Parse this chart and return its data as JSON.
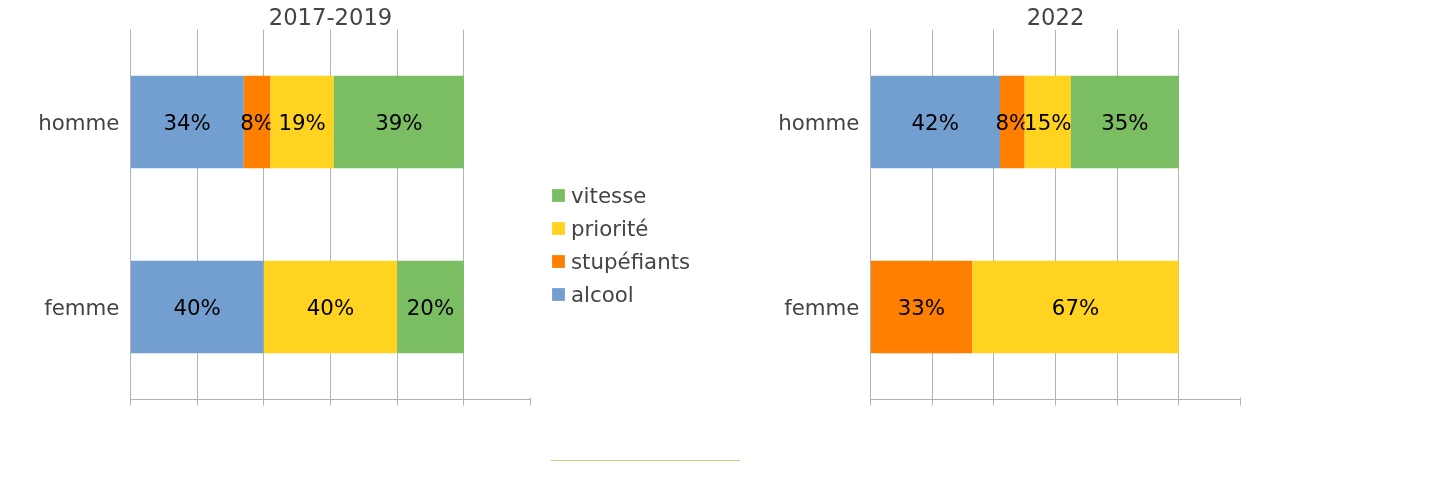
{
  "chart_data": [
    {
      "type": "bar",
      "orientation": "horizontal",
      "stacked": true,
      "title": "2017-2019",
      "categories": [
        "homme",
        "femme"
      ],
      "xlim": [
        0,
        120
      ],
      "xticks": [
        {
          "value": 0,
          "label": null
        },
        {
          "value": 20,
          "label": null
        },
        {
          "value": 40,
          "label": null
        },
        {
          "value": 60,
          "label": null
        },
        {
          "value": 80,
          "label": null
        },
        {
          "value": 100,
          "label": null
        },
        {
          "value": 120,
          "label": null
        }
      ],
      "tick_labels": "y",
      "grid": "x",
      "legend": "right",
      "series": [
        {
          "name": "alcool",
          "color": "#729fcf",
          "values": [
            34,
            40
          ],
          "value_labels": [
            "34%",
            "40%"
          ]
        },
        {
          "name": "stupéfiants",
          "color": "#ff8000",
          "values": [
            8,
            null
          ],
          "value_labels": [
            "8%",
            null
          ]
        },
        {
          "name": "priorité",
          "color": "#ffd320",
          "values": [
            19,
            40
          ],
          "value_labels": [
            "19%",
            "40%"
          ]
        },
        {
          "name": "vitesse",
          "color": "#7bbd63",
          "values": [
            39,
            20
          ],
          "value_labels": [
            "39%",
            "20%"
          ]
        }
      ]
    },
    {
      "type": "bar",
      "orientation": "horizontal",
      "stacked": true,
      "title": "2022",
      "categories": [
        "homme",
        "femme"
      ],
      "xlim": [
        0,
        120
      ],
      "xticks": [
        {
          "value": 0,
          "label": null
        },
        {
          "value": 20,
          "label": null
        },
        {
          "value": 40,
          "label": null
        },
        {
          "value": 60,
          "label": null
        },
        {
          "value": 80,
          "label": null
        },
        {
          "value": 100,
          "label": null
        },
        {
          "value": 120,
          "label": null
        }
      ],
      "tick_labels": "y",
      "grid": "x",
      "legend": false,
      "series": [
        {
          "color": "#729fcf",
          "values": [
            42,
            null
          ],
          "value_labels": [
            "42%",
            null
          ]
        },
        {
          "color": "#ff8000",
          "values": [
            8,
            33
          ],
          "value_labels": [
            "8%",
            "33%"
          ]
        },
        {
          "color": "#ffd320",
          "values": [
            15,
            67
          ],
          "value_labels": [
            "15%",
            "67%"
          ]
        },
        {
          "color": "#7bbd63",
          "values": [
            35,
            null
          ],
          "value_labels": [
            "35%",
            null
          ]
        }
      ]
    }
  ]
}
